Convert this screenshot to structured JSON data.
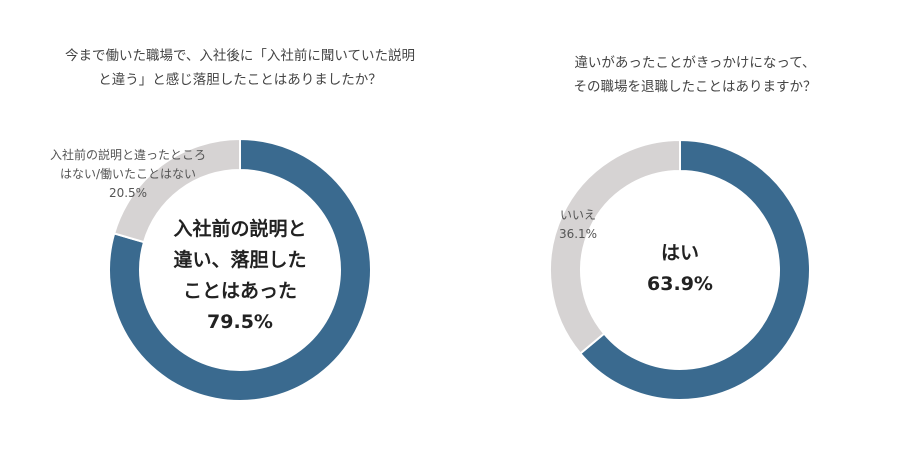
{
  "charts": [
    {
      "title_lines": [
        "今まで働いた職場で、入社後に「入社前に聞いていた説明",
        "と違う」と感じ落胆したことはありましたか？"
      ],
      "center_lines": [
        "入社前の説明と",
        "違い、落胆した",
        "ことはあった",
        "79.5%"
      ],
      "small_label_lines": [
        "入社前の説明と違ったところ",
        "はない/働いたことはない",
        "20.5%"
      ]
    },
    {
      "title_lines": [
        "違いがあったことがきっかけになって、",
        "その職場を退職したことはありますか？"
      ],
      "center_lines": [
        "はい",
        "63.9%"
      ],
      "small_label_lines": [
        "いいえ",
        "36.1%"
      ]
    }
  ],
  "chart_data": [
    {
      "type": "pie",
      "donut": true,
      "title": "今まで働いた職場で、入社後に「入社前に聞いていた説明と違う」と感じ落胆したことはありましたか？",
      "categories": [
        "入社前の説明と違い、落胆したことはあった",
        "入社前の説明と違ったところはない/働いたことはない"
      ],
      "values": [
        79.5,
        20.5
      ],
      "colors": [
        "#3a6a8f",
        "#d6d3d3"
      ]
    },
    {
      "type": "pie",
      "donut": true,
      "title": "違いがあったことがきっかけになって、その職場を退職したことはありますか？",
      "categories": [
        "はい",
        "いいえ"
      ],
      "values": [
        63.9,
        36.1
      ],
      "colors": [
        "#3a6a8f",
        "#d6d3d3"
      ]
    }
  ]
}
